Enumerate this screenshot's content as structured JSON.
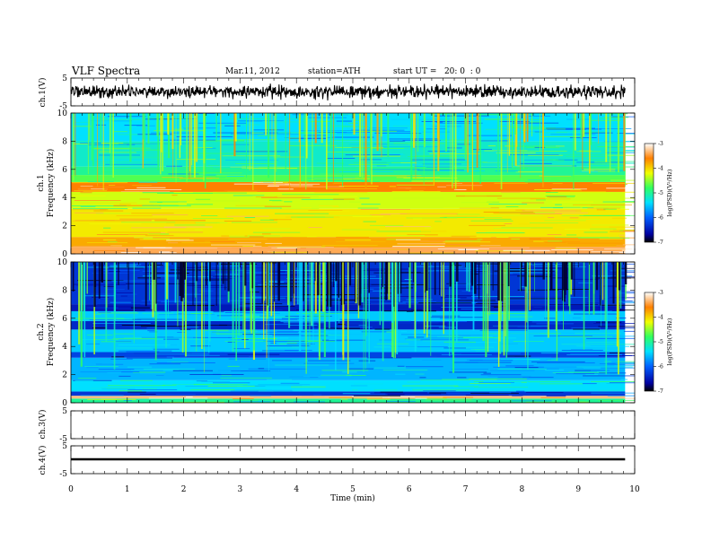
{
  "header": {
    "title": "VLF Spectra",
    "date": "Mar.11, 2012",
    "station": "station=ATH",
    "start": "start UT =   20: 0  : 0"
  },
  "chart_data": [
    {
      "type": "line",
      "panel": "ch1-waveform",
      "ylabel": "ch.1(V)",
      "ylim": [
        -5,
        5
      ],
      "yticks": [
        "5",
        "-5"
      ],
      "xlim": [
        0,
        10
      ],
      "x_extent_min": 9.83,
      "series": [
        {
          "sample_every_min": 0.025,
          "values": [
            0.7,
            -1.2,
            1.5,
            -0.8,
            2.0,
            -1.6,
            0.9,
            -2.2,
            1.8,
            -0.5,
            1.2,
            -1.9,
            2.4,
            -0.9,
            0.6,
            -1.4,
            2.1,
            -1.1,
            1.3,
            -2.0,
            0.8,
            -0.6,
            1.9,
            -1.7,
            2.3,
            -0.4,
            1.0,
            -2.1,
            1.6,
            -1.0
          ]
        }
      ]
    },
    {
      "type": "heatmap",
      "panel": "ch1-spectrogram",
      "ylabel_line1": "ch.1",
      "ylabel_line2": "Frequency (kHz)",
      "ylim": [
        0,
        10
      ],
      "yticks": [
        "10",
        "8",
        "6",
        "4",
        "2",
        "0"
      ],
      "xlim": [
        0,
        10
      ],
      "x_extent_min": 9.83,
      "colorbar": {
        "label": "log(PSD)(V²/Hz)",
        "range": [
          -7,
          -3
        ],
        "ticks": [
          "-3",
          "-4",
          "-5",
          "-6",
          "-7"
        ]
      },
      "bands": [
        {
          "f": [
            0.0,
            0.5
          ],
          "log_psd": -3.4
        },
        {
          "f": [
            0.5,
            1.2
          ],
          "log_psd": -3.8
        },
        {
          "f": [
            1.2,
            3.2
          ],
          "log_psd": -4.1
        },
        {
          "f": [
            3.2,
            4.4
          ],
          "log_psd": -4.3
        },
        {
          "f": [
            4.4,
            5.1
          ],
          "log_psd": -3.6
        },
        {
          "f": [
            5.1,
            5.6
          ],
          "log_psd": -4.7
        },
        {
          "f": [
            5.6,
            6.2
          ],
          "log_psd": -5.0
        },
        {
          "f": [
            6.2,
            8.0
          ],
          "log_psd": -5.2
        },
        {
          "f": [
            8.0,
            10.0
          ],
          "log_psd": -5.4
        }
      ]
    },
    {
      "type": "heatmap",
      "panel": "ch2-spectrogram",
      "ylabel_line1": "ch.2",
      "ylabel_line2": "Frequency (kHz)",
      "ylim": [
        0,
        10
      ],
      "yticks": [
        "10",
        "8",
        "6",
        "4",
        "2",
        "0"
      ],
      "xlim": [
        0,
        10
      ],
      "x_extent_min": 9.83,
      "colorbar": {
        "label": "log(PSD)(V²/Hz)",
        "range": [
          -7,
          -3
        ],
        "ticks": [
          "-3",
          "-4",
          "-5",
          "-6",
          "-7"
        ]
      },
      "bands": [
        {
          "f": [
            0.0,
            0.3
          ],
          "log_psd": -5.0
        },
        {
          "f": [
            0.3,
            0.5
          ],
          "log_psd": -3.3
        },
        {
          "f": [
            0.5,
            0.8
          ],
          "log_psd": -6.3
        },
        {
          "f": [
            0.8,
            1.6
          ],
          "log_psd": -5.4
        },
        {
          "f": [
            1.6,
            3.2
          ],
          "log_psd": -5.6
        },
        {
          "f": [
            3.2,
            3.6
          ],
          "log_psd": -6.2
        },
        {
          "f": [
            3.6,
            5.2
          ],
          "log_psd": -5.5
        },
        {
          "f": [
            5.2,
            5.8
          ],
          "log_psd": -6.4
        },
        {
          "f": [
            5.8,
            6.5
          ],
          "log_psd": -5.5
        },
        {
          "f": [
            6.5,
            7.0
          ],
          "log_psd": -6.5
        },
        {
          "f": [
            7.0,
            10.0
          ],
          "log_psd": -6.3
        }
      ]
    },
    {
      "type": "line",
      "panel": "ch3-waveform",
      "ylabel": "ch.3(V)",
      "ylim": [
        -5,
        5
      ],
      "yticks": [
        "5",
        "-5"
      ],
      "xlim": [
        0,
        10
      ],
      "series": []
    },
    {
      "type": "line",
      "panel": "ch4-waveform",
      "ylabel": "ch.4(V)",
      "ylim": [
        -5,
        5
      ],
      "yticks": [
        "5",
        "-5"
      ],
      "xlim": [
        0,
        10
      ],
      "x_extent_min": 9.83,
      "series": [
        {
          "values_const": 0
        }
      ]
    }
  ],
  "xaxis": {
    "label": "Time (min)",
    "ticks": [
      "0",
      "1",
      "2",
      "3",
      "4",
      "5",
      "6",
      "7",
      "8",
      "9",
      "10"
    ]
  }
}
